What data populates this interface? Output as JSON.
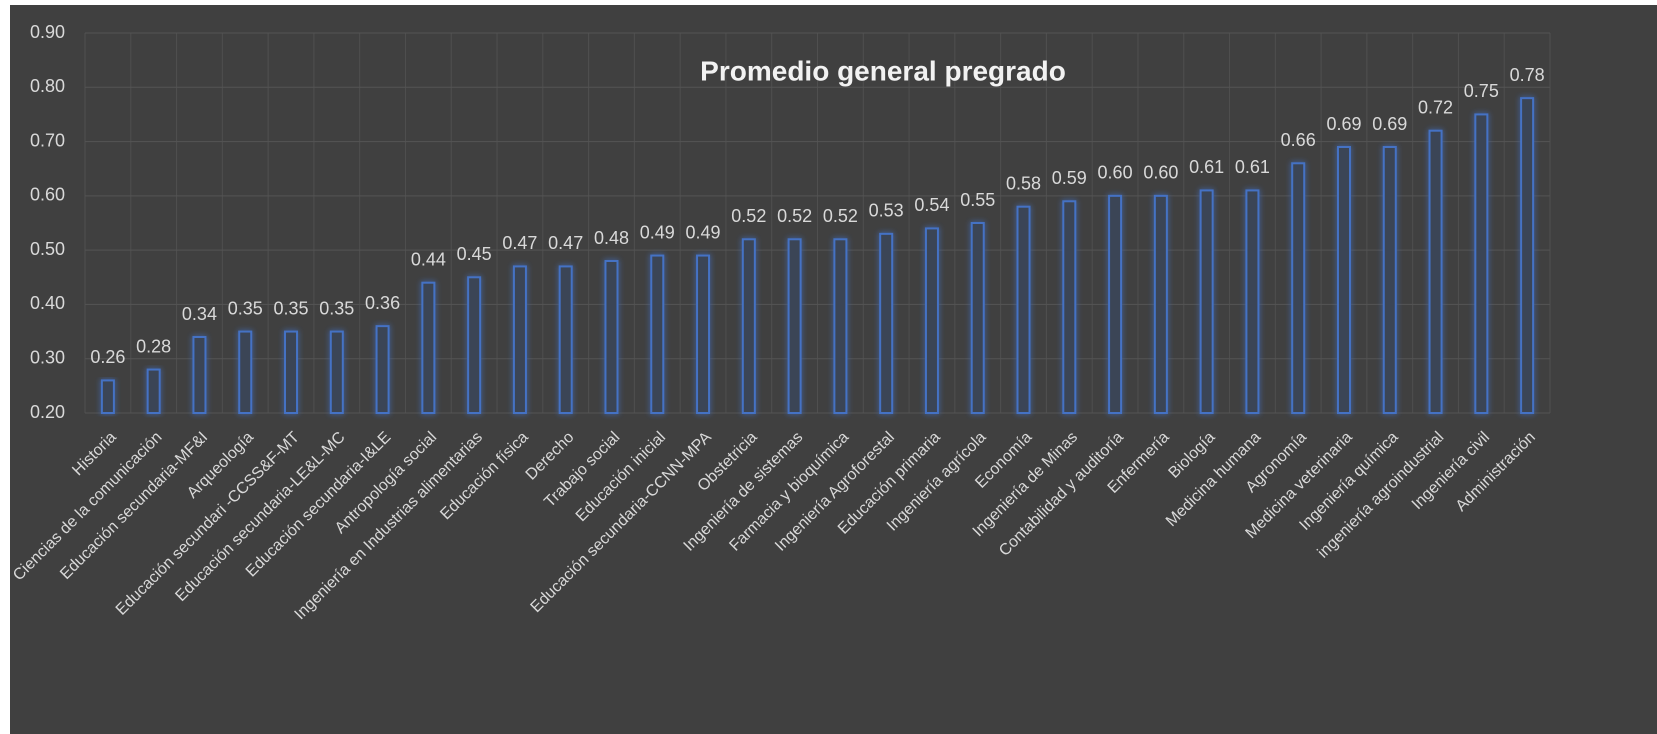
{
  "chart_data": {
    "type": "bar",
    "title": "Promedio general pregrado",
    "categories": [
      "Historia",
      "Ciencias de la comunicación",
      "Educación secundaria-MF&I",
      "Arqueología",
      "Educación secundari -CCSS&F-MT",
      "Educación secundaria-LE&L-MC",
      "Educación secundaria-I&LE",
      "Antropología social",
      "Ingeniería en Industrias alimentarias",
      "Educación física",
      "Derecho",
      "Trabajo social",
      "Educación inicial",
      "Educación secundaria-CCNN-MPA",
      "Obstetricia",
      "Ingeniería de sistemas",
      "Farmacia y bioquímica",
      "Ingeniería Agroforestal",
      "Educación primaria",
      "Ingeniería agrícola",
      "Economía",
      "Ingeniería de Minas",
      "Contabilidad y auditoría",
      "Enfermería",
      "Biología",
      "Medicina humana",
      "Agronomía",
      "Medicina veterinaria",
      "Ingeniería química",
      "ingeniería agroindustrial",
      "Ingeniería civil",
      "Administración"
    ],
    "values": [
      0.26,
      0.28,
      0.34,
      0.35,
      0.35,
      0.35,
      0.36,
      0.44,
      0.45,
      0.47,
      0.47,
      0.48,
      0.49,
      0.49,
      0.52,
      0.52,
      0.52,
      0.53,
      0.54,
      0.55,
      0.58,
      0.59,
      0.6,
      0.6,
      0.61,
      0.61,
      0.66,
      0.69,
      0.69,
      0.72,
      0.75,
      0.78
    ],
    "value_labels": [
      "0.26",
      "0.28",
      "0.34",
      "0.35",
      "0.35",
      "0.35",
      "0.36",
      "0.44",
      "0.45",
      "0.47",
      "0.47",
      "0.48",
      "0.49",
      "0.49",
      "0.52",
      "0.52",
      "0.52",
      "0.53",
      "0.54",
      "0.55",
      "0.58",
      "0.59",
      "0.60",
      "0.60",
      "0.61",
      "0.61",
      "0.66",
      "0.69",
      "0.69",
      "0.72",
      "0.75",
      "0.78"
    ],
    "color": "#4472c4",
    "ylim": [
      0.2,
      0.9
    ],
    "yticks": [
      {
        "value": 0.2,
        "label": "0.20"
      },
      {
        "value": 0.3,
        "label": "0.30"
      },
      {
        "value": 0.4,
        "label": "0.40"
      },
      {
        "value": 0.5,
        "label": "0.50"
      },
      {
        "value": 0.6,
        "label": "0.60"
      },
      {
        "value": 0.7,
        "label": "0.70"
      },
      {
        "value": 0.8,
        "label": "0.80"
      },
      {
        "value": 0.9,
        "label": "0.90"
      }
    ],
    "grid": true
  }
}
